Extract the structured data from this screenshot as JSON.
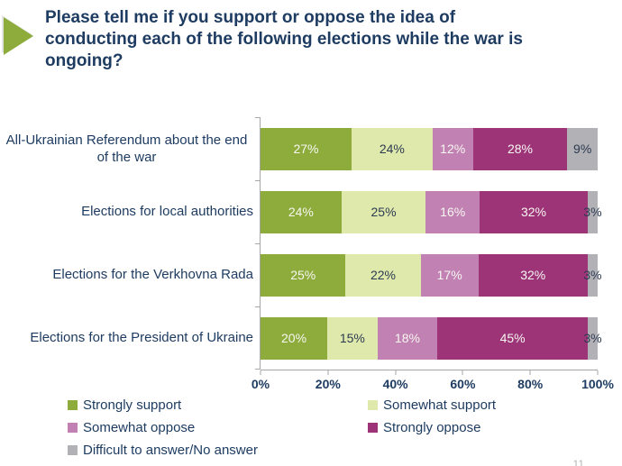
{
  "slide": {
    "title": "Please tell me if you support or oppose the idea of conducting each of the following elections while the war is ongoing?",
    "page_number": "11"
  },
  "colors": {
    "title_text": "#1e3c61",
    "axis": "#a6a6a6"
  },
  "chart_data": {
    "type": "bar",
    "orientation": "horizontal",
    "stacked": true,
    "title": "Please tell me if you support or oppose the idea of conducting each of the following elections while the war is ongoing?",
    "categories": [
      "All-Ukrainian Referendum about the end of the war",
      "Elections for local authorities",
      "Elections for the Verkhovna Rada",
      "Elections for the President of Ukraine"
    ],
    "series": [
      {
        "name": "Strongly support",
        "color": "#8dac3c",
        "values": [
          27,
          24,
          25,
          20
        ]
      },
      {
        "name": "Somewhat support",
        "color": "#dfe9ac",
        "values": [
          24,
          25,
          22,
          15
        ]
      },
      {
        "name": "Somewhat oppose",
        "color": "#c181b2",
        "values": [
          12,
          16,
          17,
          18
        ]
      },
      {
        "name": "Strongly oppose",
        "color": "#9d3478",
        "values": [
          28,
          32,
          32,
          45
        ]
      },
      {
        "name": "Difficult to answer/No answer",
        "color": "#b2b1b5",
        "values": [
          9,
          3,
          3,
          3
        ]
      }
    ],
    "x_axis": {
      "range": [
        0,
        100
      ],
      "tick_labels": [
        "0%",
        "20%",
        "40%",
        "60%",
        "80%",
        "100%"
      ]
    },
    "legend_position": "bottom",
    "grid": false
  },
  "rows": [
    {
      "label": "All-Ukrainian Referendum about the end of the war",
      "values": [
        "27%",
        "24%",
        "12%",
        "28%",
        "9%"
      ],
      "widths": [
        27,
        24,
        12,
        28,
        9
      ]
    },
    {
      "label": "Elections for local authorities",
      "values": [
        "24%",
        "25%",
        "16%",
        "32%",
        "3%"
      ],
      "widths": [
        24,
        25,
        16,
        32,
        3
      ]
    },
    {
      "label": "Elections for the Verkhovna Rada",
      "values": [
        "25%",
        "22%",
        "17%",
        "32%",
        "3%"
      ],
      "widths": [
        25,
        22,
        17,
        32,
        3
      ]
    },
    {
      "label": "Elections for the President of Ukraine",
      "values": [
        "20%",
        "15%",
        "18%",
        "45%",
        "3%"
      ],
      "widths": [
        20,
        15,
        18,
        45,
        3
      ]
    }
  ],
  "x_ticks": [
    {
      "label": "0%",
      "pos": 0
    },
    {
      "label": "20%",
      "pos": 20
    },
    {
      "label": "40%",
      "pos": 40
    },
    {
      "label": "60%",
      "pos": 60
    },
    {
      "label": "80%",
      "pos": 80
    },
    {
      "label": "100%",
      "pos": 100
    }
  ],
  "legend": {
    "items": [
      {
        "label": "Strongly support",
        "color": "#8dac3c"
      },
      {
        "label": "Somewhat support",
        "color": "#dfe9ac"
      },
      {
        "label": "Somewhat oppose",
        "color": "#c181b2"
      },
      {
        "label": "Strongly oppose",
        "color": "#9d3478"
      },
      {
        "label": "Difficult to answer/No answer",
        "color": "#b2b1b5"
      }
    ]
  }
}
